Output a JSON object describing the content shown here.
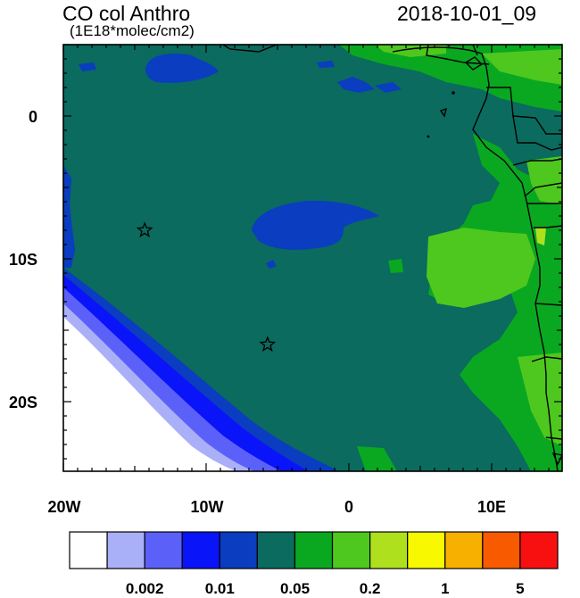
{
  "header": {
    "title": "CO col Anthro",
    "units": "(1E18*molec/cm2)",
    "datetime": "2018-10-01_09"
  },
  "axes": {
    "lon_labels": [
      "20W",
      "10W",
      "0",
      "10E"
    ],
    "lat_labels": [
      "0",
      "10S",
      "20S"
    ]
  },
  "colorbar": {
    "colors": [
      "#ffffff",
      "#aab0f8",
      "#5b61f8",
      "#0a14f8",
      "#0a3dc0",
      "#0a6b5e",
      "#0aa820",
      "#4ec81e",
      "#aee01e",
      "#f8f800",
      "#f8b000",
      "#f85a00",
      "#f81010"
    ],
    "tick_labels": [
      "0.002",
      "0.01",
      "0.05",
      "0.2",
      "1",
      "5"
    ]
  },
  "map": {
    "markers": [
      {
        "name": "star-marker-1",
        "lon": -14.3,
        "lat": -8.0
      },
      {
        "name": "star-marker-2",
        "lon": -5.7,
        "lat": -16.0
      }
    ]
  }
}
